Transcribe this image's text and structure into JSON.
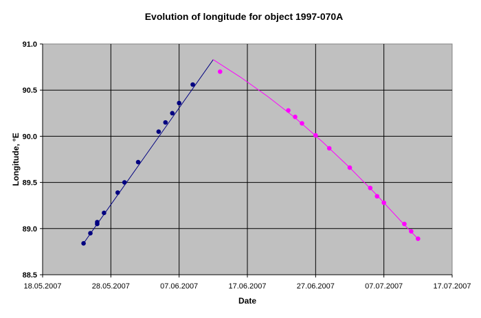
{
  "chart_data": {
    "type": "scatter",
    "title": "Evolution of longitude for object 1997-070A",
    "xlabel": "Date",
    "ylabel": "Longitude, °E",
    "xlim": [
      "18.05.2007",
      "17.07.2007"
    ],
    "ylim": [
      88.5,
      91.0
    ],
    "x_ticks": [
      "18.05.2007",
      "28.05.2007",
      "07.06.2007",
      "17.06.2007",
      "27.06.2007",
      "07.07.2007",
      "17.07.2007"
    ],
    "y_ticks": [
      "88.5",
      "89.0",
      "89.5",
      "90.0",
      "90.5",
      "91.0"
    ],
    "grid": true,
    "legend": "none",
    "colors": {
      "plot_background": "#c0c0c0",
      "grid": "#000000",
      "series_1": "#000080",
      "series_2": "#ff00ff"
    },
    "series": [
      {
        "color": "#000080",
        "marker": "circle",
        "points": [
          {
            "x": "24.05.2007",
            "y": 88.84
          },
          {
            "x": "25.05.2007",
            "y": 88.95
          },
          {
            "x": "26.05.2007",
            "y": 89.05
          },
          {
            "x": "26.05.2007",
            "y": 89.07
          },
          {
            "x": "27.05.2007",
            "y": 89.17
          },
          {
            "x": "29.05.2007",
            "y": 89.39
          },
          {
            "x": "30.05.2007",
            "y": 89.5
          },
          {
            "x": "01.06.2007",
            "y": 89.72
          },
          {
            "x": "04.06.2007",
            "y": 90.05
          },
          {
            "x": "05.06.2007",
            "y": 90.15
          },
          {
            "x": "06.06.2007",
            "y": 90.25
          },
          {
            "x": "07.06.2007",
            "y": 90.36
          },
          {
            "x": "09.06.2007",
            "y": 90.56
          }
        ],
        "fit_line": [
          {
            "x": "24.05.2007",
            "y": 88.84
          },
          {
            "x": "12.06.2007",
            "y": 90.83
          }
        ]
      },
      {
        "color": "#ff00ff",
        "marker": "circle",
        "points": [
          {
            "x": "13.06.2007",
            "y": 90.7
          },
          {
            "x": "23.06.2007",
            "y": 90.28
          },
          {
            "x": "24.06.2007",
            "y": 90.21
          },
          {
            "x": "25.06.2007",
            "y": 90.14
          },
          {
            "x": "27.06.2007",
            "y": 90.01
          },
          {
            "x": "29.06.2007",
            "y": 89.87
          },
          {
            "x": "02.07.2007",
            "y": 89.66
          },
          {
            "x": "05.07.2007",
            "y": 89.44
          },
          {
            "x": "06.07.2007",
            "y": 89.35
          },
          {
            "x": "07.07.2007",
            "y": 89.28
          },
          {
            "x": "10.07.2007",
            "y": 89.05
          },
          {
            "x": "11.07.2007",
            "y": 88.97
          },
          {
            "x": "12.07.2007",
            "y": 88.89
          }
        ],
        "fit_line": [
          {
            "x": "12.06.2007",
            "y": 90.83
          },
          {
            "x": "16.06.2007",
            "y": 90.64
          },
          {
            "x": "20.06.2007",
            "y": 90.43
          },
          {
            "x": "24.06.2007",
            "y": 90.2
          },
          {
            "x": "28.06.2007",
            "y": 89.94
          },
          {
            "x": "02.07.2007",
            "y": 89.66
          },
          {
            "x": "06.07.2007",
            "y": 89.36
          },
          {
            "x": "10.07.2007",
            "y": 89.04
          },
          {
            "x": "12.07.2007",
            "y": 88.89
          }
        ]
      }
    ]
  }
}
